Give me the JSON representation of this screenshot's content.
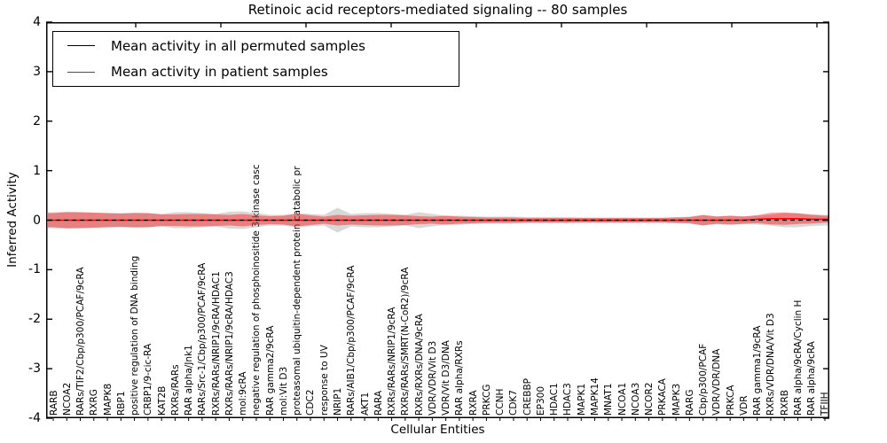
{
  "title": "Retinoic acid receptors-mediated signaling -- 80 samples",
  "legend": {
    "items": [
      {
        "label": "Mean activity in all permuted samples",
        "color": "#000000"
      },
      {
        "label": "Mean activity in patient samples",
        "color": "#ff0000"
      }
    ]
  },
  "axes": {
    "xlabel": "Cellular Entities",
    "ylabel": "Inferred Activity",
    "yticks": [
      -4,
      -3,
      -2,
      -1,
      0,
      1,
      2,
      3,
      4
    ]
  },
  "colors": {
    "patient_line": "#ff0000",
    "permuted_line": "#000000",
    "patient_band": "#ff0000",
    "permuted_band": "#909090",
    "axis": "#000000"
  },
  "chart_data": {
    "type": "line",
    "title": "Retinoic acid receptors-mediated signaling -- 80 samples",
    "xlabel": "Cellular Entities",
    "ylabel": "Inferred Activity",
    "ylim": [
      -4,
      4
    ],
    "grid": false,
    "legend_position": "upper left",
    "categories": [
      "RARB",
      "NCOA2",
      "RARs/TIF2/Cbp/p300/PCAF/9cRA",
      "RXRG",
      "MAPK8",
      "RBP1",
      "positive regulation of DNA binding",
      "CRBP1/9-cic-RA",
      "KAT2B",
      "RXRs/RARs",
      "RAR alpha/Jnk1",
      "RARs/Src-1/Cbp/p300/PCAF/9cRA",
      "RXRs/RARs/NRIP1/9cRA/HDAC1",
      "RXRs/RARs/NRIP1/9cRA/HDAC3",
      "mol:9cRA",
      "negative regulation of phosphoinositide 3-kinase casc",
      "RAR gamma2/9cRA",
      "mol:Vit D3",
      "proteasomal ubiquitin-dependent protein catabolic pr",
      "CDC2",
      "response to UV",
      "NRIP1",
      "RARs/AIB1/Cbp/p300/PCAF/9cRA",
      "AKT1",
      "RARA",
      "RXRs/RARs/NRIP1/9cRA",
      "RXRs/RARs/SMRT(N-CoR2)/9cRA",
      "RXRs/RXRs/DNA/9cRA",
      "VDR/VDR/Vit D3",
      "VDR/Vit D3/DNA",
      "RAR alpha/RXRs",
      "RXRA",
      "PRKCG",
      "CCNH",
      "CDK7",
      "CREBBP",
      "EP300",
      "HDAC1",
      "HDAC3",
      "MAPK1",
      "MAPK14",
      "MNAT1",
      "NCOA1",
      "NCOA3",
      "NCOR2",
      "PRKACA",
      "MAPK3",
      "RARG",
      "Cbp/p300/PCAF",
      "VDR/VDR/DNA",
      "PRKCA",
      "VDR",
      "RAR gamma1/9cRA",
      "RXRs/VDR/DNA/Vit D3",
      "RXRB",
      "RAR alpha/9cRA/Cyclin H",
      "RAR alpha/9cRA",
      "TFIIH"
    ],
    "series": [
      {
        "name": "Mean activity in all permuted samples",
        "color": "#000000",
        "style": "dashed",
        "values": [
          0,
          0,
          0,
          0,
          0,
          0,
          0,
          0,
          0,
          0,
          0,
          0,
          0,
          0,
          0,
          0,
          0,
          0,
          0,
          0,
          0,
          0,
          0,
          0,
          0,
          0,
          0,
          0,
          0,
          0,
          0,
          0,
          0,
          0,
          0,
          0,
          0,
          0,
          0,
          0,
          0,
          0,
          0,
          0,
          0,
          0,
          0,
          0,
          0,
          0,
          0,
          0,
          0,
          0,
          0,
          0,
          0,
          0
        ]
      },
      {
        "name": "Mean activity in patient samples",
        "color": "#ff0000",
        "style": "solid",
        "values": [
          0,
          0,
          0,
          0,
          0,
          0,
          0,
          0,
          0,
          0,
          0,
          0,
          0,
          0,
          0,
          0,
          0,
          0,
          0,
          0,
          0,
          0,
          0,
          0,
          0,
          0,
          0,
          0,
          0,
          0,
          0,
          0,
          0,
          0,
          0,
          0,
          0,
          0,
          0,
          0,
          0,
          0,
          0,
          0,
          0,
          0,
          0,
          0,
          0,
          0,
          0,
          0,
          0.02,
          0.03,
          0.03,
          0.03,
          0.02,
          0.02
        ]
      }
    ],
    "bands": [
      {
        "name": "permuted range",
        "color": "#909090",
        "opacity": 0.35,
        "halfwidths": [
          0.161,
          0.17,
          0.161,
          0.152,
          0.143,
          0.143,
          0.152,
          0.143,
          0.125,
          0.161,
          0.161,
          0.143,
          0.125,
          0.17,
          0.179,
          0.143,
          0.107,
          0.107,
          0.143,
          0.125,
          0.107,
          0.251,
          0.125,
          0.143,
          0.143,
          0.125,
          0.107,
          0.161,
          0.125,
          0.089,
          0.089,
          0.081,
          0.072,
          0.072,
          0.072,
          0.063,
          0.063,
          0.063,
          0.063,
          0.054,
          0.054,
          0.054,
          0.054,
          0.054,
          0.054,
          0.054,
          0.063,
          0.072,
          0.098,
          0.081,
          0.089,
          0.081,
          0.089,
          0.107,
          0.143,
          0.143,
          0.116,
          0.107
        ]
      },
      {
        "name": "patient range",
        "color": "#ff0000",
        "opacity": 0.4,
        "halfwidths": [
          0.143,
          0.161,
          0.161,
          0.152,
          0.143,
          0.134,
          0.143,
          0.143,
          0.116,
          0.116,
          0.125,
          0.125,
          0.116,
          0.107,
          0.125,
          0.098,
          0.081,
          0.089,
          0.125,
          0.098,
          0.072,
          0.107,
          0.089,
          0.098,
          0.107,
          0.107,
          0.098,
          0.081,
          0.072,
          0.089,
          0.072,
          0.063,
          0.054,
          0.054,
          0.054,
          0.045,
          0.045,
          0.045,
          0.045,
          0.045,
          0.045,
          0.045,
          0.045,
          0.045,
          0.045,
          0.045,
          0.054,
          0.063,
          0.107,
          0.072,
          0.089,
          0.072,
          0.081,
          0.116,
          0.125,
          0.107,
          0.089,
          0.072
        ]
      }
    ]
  }
}
